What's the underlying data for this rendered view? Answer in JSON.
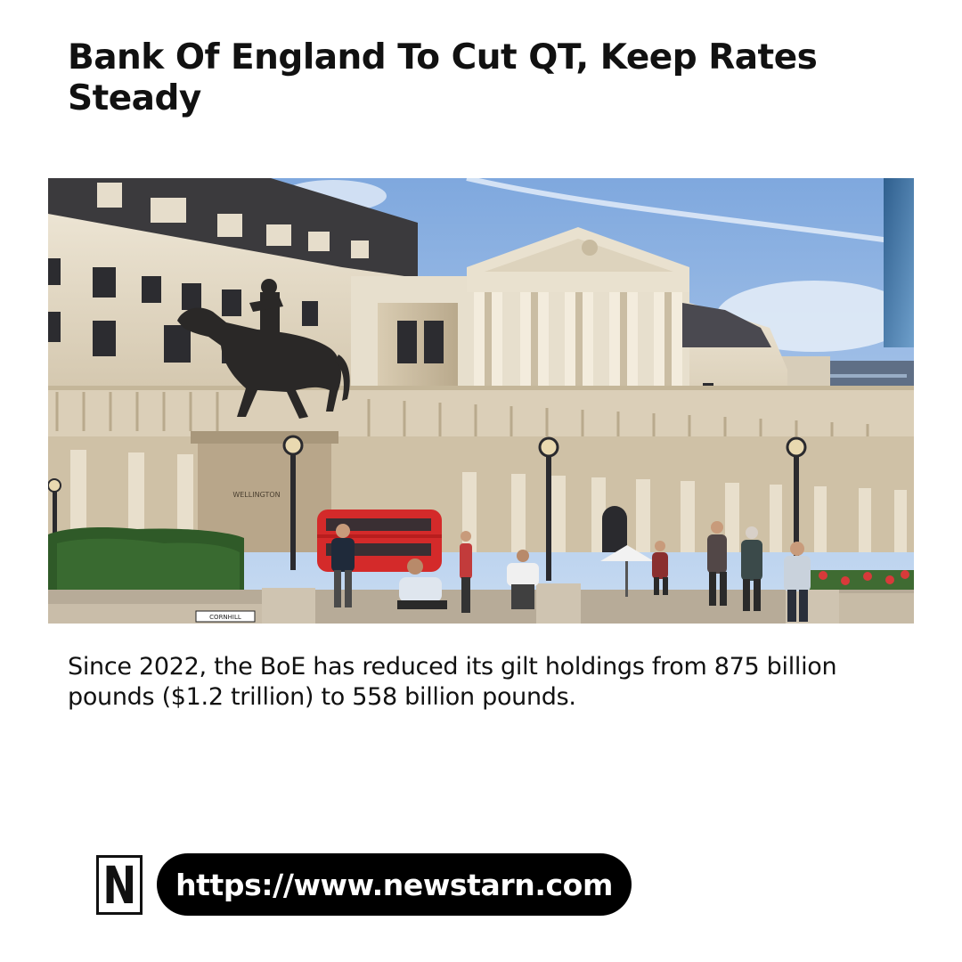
{
  "article": {
    "headline": "Bank Of England To Cut QT, Keep Rates Steady",
    "caption": "Since 2022, the BoE has reduced its gilt holdings from 875 billion pounds ($1.2 trillion) to 558 billion pounds."
  },
  "photo": {
    "statue_inscription": "WELLINGTON",
    "street_sign": "CORNHILL"
  },
  "footer": {
    "logo_letter": "N",
    "url": "https://www.newstarn.com"
  },
  "colors": {
    "text": "#111111",
    "pill_background": "#000000",
    "pill_text": "#ffffff",
    "bus_red": "#d42a2a"
  }
}
